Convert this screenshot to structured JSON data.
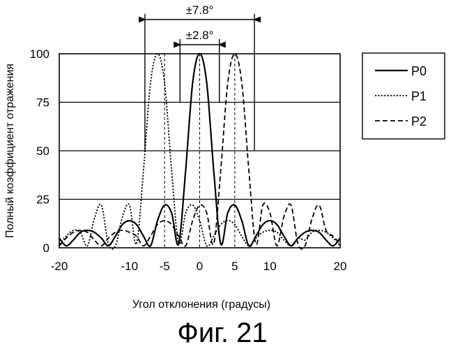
{
  "figure_label": "Фиг. 21",
  "chart_data": {
    "type": "line",
    "xlabel": "Угол отклонения (градусы)",
    "ylabel": "Полный коэффициент отражения",
    "xlim": [
      -20,
      20
    ],
    "ylim": [
      0,
      100
    ],
    "x_ticks": [
      -20,
      -10,
      -5,
      0,
      5,
      10,
      20
    ],
    "y_ticks": [
      0,
      25,
      50,
      75,
      100
    ],
    "horizontal_grid": true,
    "legend_position": "right",
    "annotations": [
      {
        "text": "±7.8°",
        "from": -7.8,
        "to": 7.8
      },
      {
        "text": "±2.8°",
        "from": -2.8,
        "to": 2.8
      }
    ],
    "series": [
      {
        "name": "P0",
        "style": "solid",
        "center": 0,
        "x": [
          -20,
          -19,
          -18,
          -17,
          -16,
          -15,
          -14,
          -13,
          -12,
          -11,
          -10,
          -9,
          -8,
          -7,
          -6,
          -5,
          -4,
          -3,
          -2,
          -1,
          0,
          1,
          2,
          3,
          4,
          5,
          6,
          7,
          8,
          9,
          10,
          11,
          12,
          13,
          14,
          15,
          16,
          17,
          18,
          19,
          20
        ],
        "y": [
          5,
          1,
          4,
          8,
          9,
          8,
          5,
          1,
          6,
          12,
          14,
          12,
          6,
          1,
          14,
          22,
          18,
          2,
          40,
          85,
          100,
          85,
          40,
          2,
          18,
          22,
          14,
          1,
          6,
          12,
          14,
          12,
          6,
          1,
          5,
          8,
          9,
          8,
          4,
          1,
          5
        ]
      },
      {
        "name": "P1",
        "style": "dotted",
        "center": -5,
        "x": [
          -20,
          -19,
          -18,
          -17,
          -16,
          -15,
          -14,
          -13,
          -12,
          -11,
          -10,
          -9,
          -8,
          -7,
          -6,
          -5,
          -4,
          -3,
          -2,
          -1,
          0,
          1,
          2,
          3,
          4,
          5,
          6,
          7,
          8,
          9,
          10,
          11,
          12,
          13,
          14,
          15,
          16,
          17,
          18,
          19,
          20
        ],
        "y": [
          2,
          6,
          9,
          8,
          1,
          15,
          22,
          2,
          1,
          16,
          22,
          2,
          40,
          85,
          100,
          85,
          40,
          2,
          18,
          22,
          14,
          1,
          6,
          12,
          14,
          12,
          6,
          1,
          5,
          8,
          9,
          8,
          4,
          1,
          5,
          4,
          8,
          9,
          8,
          5,
          1
        ]
      },
      {
        "name": "P2",
        "style": "dashed",
        "center": 5,
        "x": [
          -20,
          -19,
          -18,
          -17,
          -16,
          -15,
          -14,
          -13,
          -12,
          -11,
          -10,
          -9,
          -8,
          -7,
          -6,
          -5,
          -4,
          -3,
          -2,
          -1,
          0,
          1,
          2,
          3,
          4,
          5,
          6,
          7,
          8,
          9,
          10,
          11,
          12,
          13,
          14,
          15,
          16,
          17,
          18,
          19,
          20
        ],
        "y": [
          1,
          5,
          8,
          9,
          8,
          4,
          1,
          5,
          8,
          9,
          8,
          6,
          1,
          6,
          12,
          14,
          12,
          6,
          1,
          14,
          22,
          18,
          2,
          40,
          85,
          100,
          85,
          40,
          2,
          22,
          18,
          1,
          16,
          22,
          2,
          1,
          15,
          22,
          9,
          6,
          2
        ]
      }
    ]
  }
}
